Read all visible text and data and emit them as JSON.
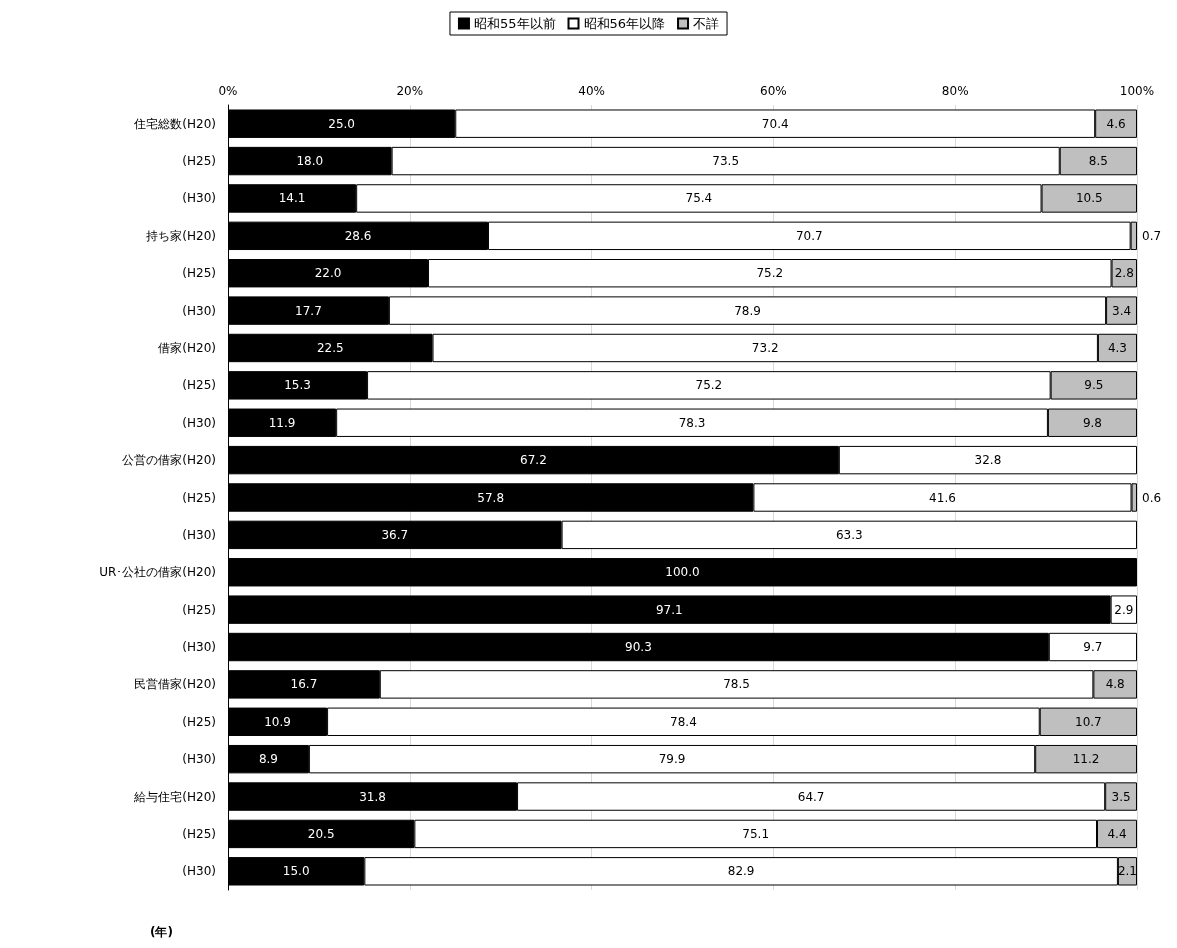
{
  "chart_data": {
    "type": "bar",
    "orientation": "horizontal",
    "stacked": true,
    "categories": [
      "住宅総数(H20)",
      "(H25)",
      "(H30)",
      "持ち家(H20)",
      "(H25)",
      "(H30)",
      "借家(H20)",
      "(H25)",
      "(H30)",
      "公営の借家(H20)",
      "(H25)",
      "(H30)",
      "UR･公社の借家(H20)",
      "(H25)",
      "(H30)",
      "民営借家(H20)",
      "(H25)",
      "(H30)",
      "給与住宅(H20)",
      "(H25)",
      "(H30)"
    ],
    "series": [
      {
        "name": "昭和55年以前",
        "color": "#000000",
        "values": [
          25.0,
          18.0,
          14.1,
          28.6,
          22.0,
          17.7,
          22.5,
          15.3,
          11.9,
          67.2,
          57.8,
          36.7,
          100.0,
          97.1,
          90.3,
          16.7,
          10.9,
          8.9,
          31.8,
          20.5,
          15.0
        ],
        "value_labels": [
          "25.0",
          "18.0",
          "14.1",
          "28.6",
          "22.0",
          "17.7",
          "22.5",
          "15.3",
          "11.9",
          "67.2",
          "57.8",
          "36.7",
          "100.0",
          "97.1",
          "90.3",
          "16.7",
          "10.9",
          "8.9",
          "31.8",
          "20.5",
          "15.0"
        ]
      },
      {
        "name": "昭和56年以降",
        "color": "#ffffff",
        "values": [
          70.4,
          73.5,
          75.4,
          70.7,
          75.2,
          78.9,
          73.2,
          75.2,
          78.3,
          32.8,
          41.6,
          63.3,
          null,
          2.9,
          9.7,
          78.5,
          78.4,
          79.9,
          64.7,
          75.1,
          82.9
        ],
        "value_labels": [
          "70.4",
          "73.5",
          "75.4",
          "70.7",
          "75.2",
          "78.9",
          "73.2",
          "75.2",
          "78.3",
          "32.8",
          "41.6",
          "63.3",
          null,
          "2.9",
          "9.7",
          "78.5",
          "78.4",
          "79.9",
          "64.7",
          "75.1",
          "82.9"
        ]
      },
      {
        "name": "不詳",
        "color": "#bfbfbf",
        "values": [
          4.6,
          8.5,
          10.5,
          0.7,
          2.8,
          3.4,
          4.3,
          9.5,
          9.8,
          null,
          0.6,
          null,
          null,
          null,
          null,
          4.8,
          10.7,
          11.2,
          3.5,
          4.4,
          2.1
        ],
        "value_labels": [
          "4.6",
          "8.5",
          "10.5",
          "0.7",
          "2.8",
          "3.4",
          "4.3",
          "9.5",
          "9.8",
          null,
          "0.6",
          null,
          null,
          null,
          null,
          "4.8",
          "10.7",
          "11.2",
          "3.5",
          "4.4",
          "2.1"
        ]
      }
    ],
    "xlim": [
      0,
      100
    ],
    "xticks": [
      {
        "value": 0,
        "label": "0%"
      },
      {
        "value": 20,
        "label": "20%"
      },
      {
        "value": 40,
        "label": "40%"
      },
      {
        "value": 60,
        "label": "60%"
      },
      {
        "value": 80,
        "label": "80%"
      },
      {
        "value": 100,
        "label": "100%"
      }
    ],
    "grid": "x",
    "legend": "top",
    "annotations": [
      "(年)"
    ]
  }
}
